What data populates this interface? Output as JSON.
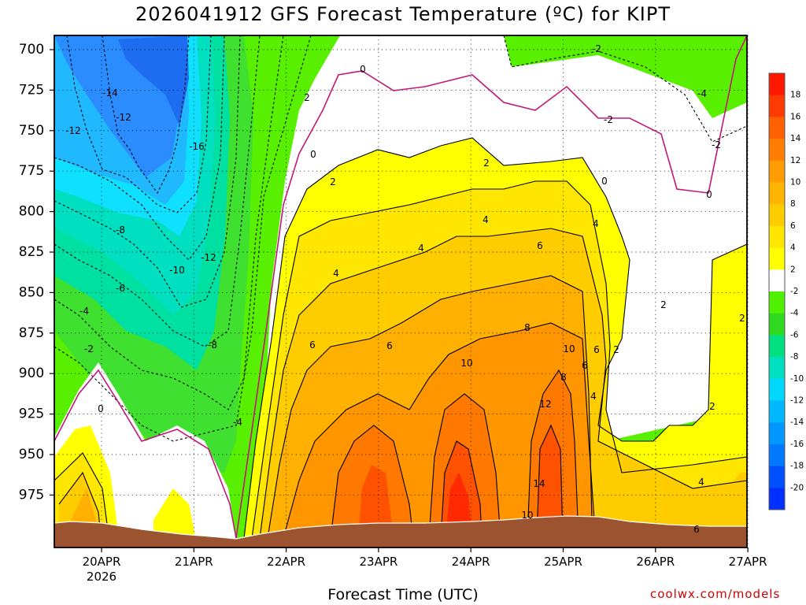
{
  "chart_data": {
    "type": "contour",
    "title": "2026041912 GFS Forecast Temperature (ºC) for KIPT",
    "xlabel": "Forecast Time (UTC)",
    "ylabel": "",
    "x_ticks": [
      "20APR",
      "21APR",
      "22APR",
      "23APR",
      "24APR",
      "25APR",
      "26APR",
      "27APR"
    ],
    "x_year_label": "2026",
    "y_ticks": [
      700,
      725,
      750,
      775,
      800,
      825,
      850,
      875,
      900,
      925,
      950,
      975
    ],
    "y_range_hpa": [
      690,
      993
    ],
    "x_range_hours": [
      -12,
      168
    ],
    "colorbar": {
      "labels": [
        18,
        16,
        14,
        12,
        10,
        8,
        6,
        4,
        2,
        -2,
        -4,
        -6,
        -8,
        -10,
        -12,
        -14,
        -16,
        -18,
        -20
      ],
      "colors": [
        "#ff1800",
        "#ff3a00",
        "#ff6000",
        "#ff7e00",
        "#ff9c00",
        "#ffb400",
        "#ffcc00",
        "#ffe600",
        "#ffff00",
        "#ffffff",
        "#50f000",
        "#30d820",
        "#00e080",
        "#00e0c0",
        "#00d8ff",
        "#00b8ff",
        "#0098ff",
        "#0078ff",
        "#0050ff",
        "#0030ff"
      ]
    },
    "contour_labels": [
      "-14",
      "-12",
      "-12",
      "-16",
      "-8",
      "-10",
      "-12",
      "-6",
      "-4",
      "-2",
      "-8",
      "-4",
      "0",
      "0",
      "0",
      "-2",
      "2",
      "2",
      "2",
      "0",
      "0",
      "-2",
      "-4",
      "-2",
      "4",
      "4",
      "4",
      "6",
      "4",
      "6",
      "6",
      "8",
      "10",
      "10",
      "12",
      "14",
      "10",
      "8",
      "6",
      "6",
      "2",
      "4",
      "2",
      "2",
      "4",
      "6",
      "2"
    ],
    "colors": {
      "ground": "#9c5430",
      "zero_line": "#c0187a",
      "credit": "#d00000"
    }
  },
  "credit": "coolwx.com/models"
}
